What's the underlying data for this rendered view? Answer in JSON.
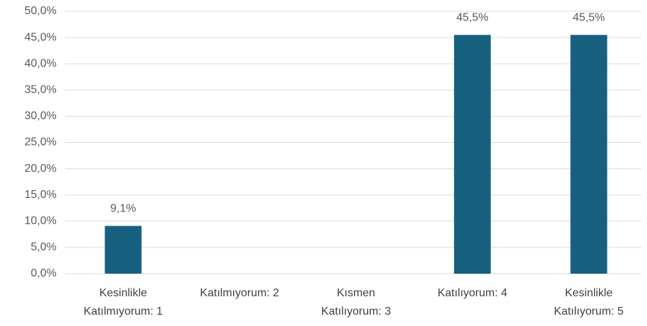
{
  "chart_data": {
    "type": "bar",
    "categories": [
      "Kesinlikle Katılmıyorum: 1",
      "Katılmıyorum: 2",
      "Kısmen Katılıyorum: 3",
      "Katılıyorum: 4",
      "Kesinlikle Katılıyorum: 5"
    ],
    "values": [
      9.1,
      0,
      0,
      45.5,
      45.5
    ],
    "value_labels": [
      "9,1%",
      null,
      null,
      "45,5%",
      "45,5%"
    ],
    "color": "#17607f",
    "ylim": [
      0,
      50
    ],
    "yticks": [
      {
        "value": 0,
        "label": "0,0%"
      },
      {
        "value": 5,
        "label": "5,0%"
      },
      {
        "value": 10,
        "label": "10,0%"
      },
      {
        "value": 15,
        "label": "15,0%"
      },
      {
        "value": 20,
        "label": "20,0%"
      },
      {
        "value": 25,
        "label": "25,0%"
      },
      {
        "value": 30,
        "label": "30,0%"
      },
      {
        "value": 35,
        "label": "35,0%"
      },
      {
        "value": 40,
        "label": "40,0%"
      },
      {
        "value": 45,
        "label": "45,0%"
      },
      {
        "value": 50,
        "label": "50,0%"
      }
    ],
    "grid": true
  }
}
